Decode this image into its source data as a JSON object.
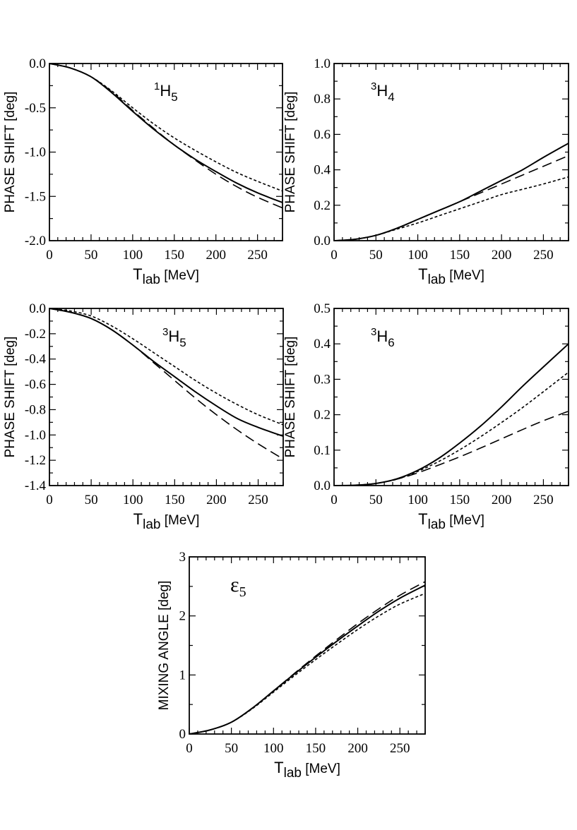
{
  "chart_data": [
    {
      "type": "line",
      "wave": {
        "sup": "1",
        "main": "H",
        "sub": "5"
      },
      "ylabel": "PHASE  SHIFT [deg]",
      "xlabel": {
        "main": "T",
        "sub": "lab",
        "unit": " [MeV]"
      },
      "xlim": [
        0,
        280
      ],
      "ylim": [
        -2.0,
        0.0
      ],
      "xticks": [
        0,
        50,
        100,
        150,
        200,
        250
      ],
      "xtick_labels": [
        "0",
        "50",
        "100",
        "150",
        "200",
        "250"
      ],
      "yticks": [
        0.0,
        -0.5,
        -1.0,
        -1.5,
        -2.0
      ],
      "ytick_labels": [
        "0.0",
        "-0.5",
        "-1.0",
        "-1.5",
        "-2.0"
      ],
      "series": [
        {
          "name": "solid",
          "style": "solid",
          "x": [
            0,
            25,
            50,
            75,
            100,
            125,
            150,
            175,
            200,
            225,
            250,
            280
          ],
          "y": [
            0,
            -0.05,
            -0.15,
            -0.33,
            -0.54,
            -0.74,
            -0.92,
            -1.08,
            -1.22,
            -1.35,
            -1.46,
            -1.57
          ]
        },
        {
          "name": "long-dashed",
          "style": "longdash",
          "x": [
            0,
            25,
            50,
            75,
            100,
            125,
            150,
            175,
            200,
            225,
            250,
            280
          ],
          "y": [
            0,
            -0.05,
            -0.15,
            -0.32,
            -0.53,
            -0.73,
            -0.92,
            -1.09,
            -1.25,
            -1.39,
            -1.51,
            -1.63
          ]
        },
        {
          "name": "short-dashed",
          "style": "shortdash",
          "x": [
            0,
            25,
            50,
            75,
            100,
            125,
            150,
            175,
            200,
            225,
            250,
            280
          ],
          "y": [
            0,
            -0.05,
            -0.15,
            -0.31,
            -0.5,
            -0.68,
            -0.84,
            -0.98,
            -1.11,
            -1.23,
            -1.33,
            -1.44
          ]
        }
      ]
    },
    {
      "type": "line",
      "wave": {
        "sup": "3",
        "main": "H",
        "sub": "4"
      },
      "ylabel": "PHASE  SHIFT [deg]",
      "xlabel": {
        "main": "T",
        "sub": "lab",
        "unit": " [MeV]"
      },
      "xlim": [
        0,
        280
      ],
      "ylim": [
        0.0,
        1.0
      ],
      "xticks": [
        0,
        50,
        100,
        150,
        200,
        250
      ],
      "xtick_labels": [
        "0",
        "50",
        "100",
        "150",
        "200",
        "250"
      ],
      "yticks": [
        0.0,
        0.2,
        0.4,
        0.6,
        0.8,
        1.0
      ],
      "ytick_labels": [
        "0.0",
        "0.2",
        "0.4",
        "0.6",
        "0.8",
        "1.0"
      ],
      "series": [
        {
          "name": "solid",
          "style": "solid",
          "x": [
            0,
            25,
            50,
            75,
            100,
            125,
            150,
            175,
            200,
            225,
            250,
            280
          ],
          "y": [
            0,
            0.008,
            0.03,
            0.07,
            0.12,
            0.17,
            0.22,
            0.28,
            0.34,
            0.4,
            0.47,
            0.55
          ]
        },
        {
          "name": "long-dashed",
          "style": "longdash",
          "x": [
            0,
            25,
            50,
            75,
            100,
            125,
            150,
            175,
            200,
            225,
            250,
            280
          ],
          "y": [
            0,
            0.008,
            0.03,
            0.07,
            0.12,
            0.17,
            0.22,
            0.27,
            0.32,
            0.37,
            0.42,
            0.48
          ]
        },
        {
          "name": "short-dashed",
          "style": "shortdash",
          "x": [
            0,
            25,
            50,
            75,
            100,
            125,
            150,
            175,
            200,
            225,
            250,
            280
          ],
          "y": [
            0,
            0.008,
            0.03,
            0.065,
            0.1,
            0.14,
            0.18,
            0.22,
            0.26,
            0.29,
            0.32,
            0.36
          ]
        }
      ]
    },
    {
      "type": "line",
      "wave": {
        "sup": "3",
        "main": "H",
        "sub": "5"
      },
      "ylabel": "PHASE  SHIFT [deg]",
      "xlabel": {
        "main": "T",
        "sub": "lab",
        "unit": " [MeV]"
      },
      "xlim": [
        0,
        280
      ],
      "ylim": [
        -1.4,
        0.0
      ],
      "xticks": [
        0,
        50,
        100,
        150,
        200,
        250
      ],
      "xtick_labels": [
        "0",
        "50",
        "100",
        "150",
        "200",
        "250"
      ],
      "yticks": [
        0.0,
        -0.2,
        -0.4,
        -0.6,
        -0.8,
        -1.0,
        -1.2,
        -1.4
      ],
      "ytick_labels": [
        "0.0",
        "-0.2",
        "-0.4",
        "-0.6",
        "-0.8",
        "-1.0",
        "-1.2",
        "-1.4"
      ],
      "series": [
        {
          "name": "solid",
          "style": "solid",
          "x": [
            0,
            25,
            50,
            75,
            100,
            125,
            150,
            175,
            200,
            225,
            250,
            280
          ],
          "y": [
            0,
            -0.03,
            -0.08,
            -0.17,
            -0.29,
            -0.42,
            -0.54,
            -0.66,
            -0.77,
            -0.87,
            -0.94,
            -1.01
          ]
        },
        {
          "name": "long-dashed",
          "style": "longdash",
          "x": [
            0,
            25,
            50,
            75,
            100,
            125,
            150,
            175,
            200,
            225,
            250,
            280
          ],
          "y": [
            0,
            -0.03,
            -0.08,
            -0.17,
            -0.29,
            -0.43,
            -0.57,
            -0.71,
            -0.84,
            -0.96,
            -1.07,
            -1.19
          ]
        },
        {
          "name": "short-dashed",
          "style": "shortdash",
          "x": [
            0,
            25,
            50,
            75,
            100,
            125,
            150,
            175,
            200,
            225,
            250,
            280
          ],
          "y": [
            0,
            -0.02,
            -0.06,
            -0.14,
            -0.24,
            -0.35,
            -0.46,
            -0.57,
            -0.67,
            -0.76,
            -0.84,
            -0.92
          ]
        }
      ]
    },
    {
      "type": "line",
      "wave": {
        "sup": "3",
        "main": "H",
        "sub": "6"
      },
      "ylabel": "PHASE  SHIFT [deg]",
      "xlabel": {
        "main": "T",
        "sub": "lab",
        "unit": " [MeV]"
      },
      "xlim": [
        0,
        280
      ],
      "ylim": [
        0.0,
        0.5
      ],
      "xticks": [
        0,
        50,
        100,
        150,
        200,
        250
      ],
      "xtick_labels": [
        "0",
        "50",
        "100",
        "150",
        "200",
        "250"
      ],
      "yticks": [
        0.0,
        0.1,
        0.2,
        0.3,
        0.4,
        0.5
      ],
      "ytick_labels": [
        "0.0",
        "0.1",
        "0.2",
        "0.3",
        "0.4",
        "0.5"
      ],
      "series": [
        {
          "name": "solid",
          "style": "solid",
          "x": [
            0,
            25,
            50,
            75,
            100,
            125,
            150,
            175,
            200,
            225,
            250,
            280
          ],
          "y": [
            0,
            0.001,
            0.006,
            0.019,
            0.043,
            0.077,
            0.12,
            0.168,
            0.222,
            0.28,
            0.335,
            0.4
          ]
        },
        {
          "name": "long-dashed",
          "style": "longdash",
          "x": [
            0,
            25,
            50,
            75,
            100,
            125,
            150,
            175,
            200,
            225,
            250,
            280
          ],
          "y": [
            0,
            0.001,
            0.006,
            0.018,
            0.036,
            0.058,
            0.081,
            0.106,
            0.132,
            0.158,
            0.183,
            0.21
          ]
        },
        {
          "name": "short-dashed",
          "style": "shortdash",
          "x": [
            0,
            25,
            50,
            75,
            100,
            125,
            150,
            175,
            200,
            225,
            250,
            280
          ],
          "y": [
            0,
            0.001,
            0.006,
            0.018,
            0.04,
            0.068,
            0.101,
            0.138,
            0.178,
            0.22,
            0.265,
            0.32
          ]
        }
      ]
    },
    {
      "type": "line",
      "wave": {
        "main": "ε",
        "sub": "5"
      },
      "ylabel": "MIXING  ANGLE [deg]",
      "xlabel": {
        "main": "T",
        "sub": "lab",
        "unit": " [MeV]"
      },
      "xlim": [
        0,
        280
      ],
      "ylim": [
        0,
        3
      ],
      "xticks": [
        0,
        50,
        100,
        150,
        200,
        250
      ],
      "xtick_labels": [
        "0",
        "50",
        "100",
        "150",
        "200",
        "250"
      ],
      "yticks": [
        0,
        1,
        2,
        3
      ],
      "ytick_labels": [
        "0",
        "1",
        "2",
        "3"
      ],
      "series": [
        {
          "name": "solid",
          "style": "solid",
          "x": [
            0,
            25,
            50,
            75,
            100,
            125,
            150,
            175,
            200,
            225,
            250,
            280
          ],
          "y": [
            0,
            0.07,
            0.2,
            0.44,
            0.73,
            1.02,
            1.3,
            1.57,
            1.83,
            2.08,
            2.3,
            2.52
          ]
        },
        {
          "name": "long-dashed",
          "style": "longdash",
          "x": [
            0,
            25,
            50,
            75,
            100,
            125,
            150,
            175,
            200,
            225,
            250,
            280
          ],
          "y": [
            0,
            0.07,
            0.2,
            0.44,
            0.73,
            1.03,
            1.32,
            1.6,
            1.87,
            2.12,
            2.35,
            2.58
          ]
        },
        {
          "name": "short-dashed",
          "style": "shortdash",
          "x": [
            0,
            25,
            50,
            75,
            100,
            125,
            150,
            175,
            200,
            225,
            250,
            280
          ],
          "y": [
            0,
            0.07,
            0.2,
            0.43,
            0.71,
            0.99,
            1.26,
            1.52,
            1.77,
            2.0,
            2.2,
            2.38
          ]
        }
      ]
    }
  ]
}
